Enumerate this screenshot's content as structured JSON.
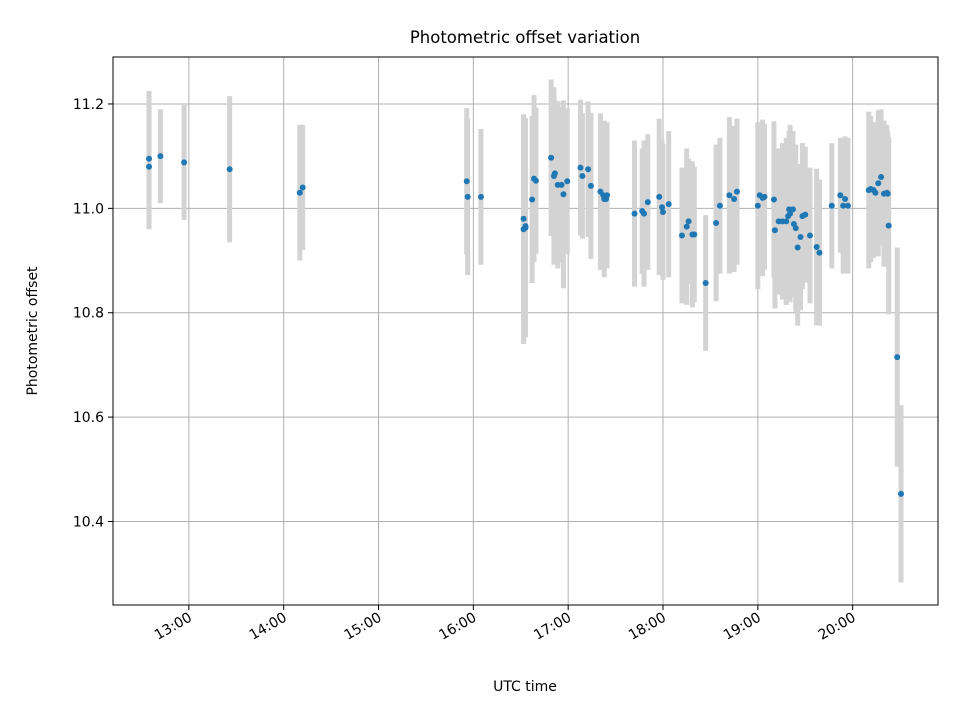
{
  "chart_data": {
    "type": "scatter",
    "title": "Photometric offset variation",
    "xlabel": "UTC time",
    "ylabel": "Photometric offset",
    "x_unit": "decimal hours UTC",
    "xlim": [
      12.2,
      20.9
    ],
    "ylim": [
      10.24,
      11.29
    ],
    "x_ticks": [
      13,
      14,
      15,
      16,
      17,
      18,
      19,
      20
    ],
    "x_tick_labels": [
      "13:00",
      "14:00",
      "15:00",
      "16:00",
      "17:00",
      "18:00",
      "19:00",
      "20:00"
    ],
    "y_ticks": [
      10.4,
      10.6,
      10.8,
      11.0,
      11.2
    ],
    "y_tick_labels": [
      "10.4",
      "10.6",
      "10.8",
      "11.0",
      "11.2"
    ],
    "grid": true,
    "marker_color": "#1f77b4",
    "errorbar_color": "#d3d3d3",
    "series": [
      {
        "name": "Photometric offset",
        "x": [
          12.58,
          12.58,
          12.7,
          12.95,
          13.43,
          14.17,
          14.2,
          15.93,
          15.94,
          16.08,
          16.53,
          16.53,
          16.55,
          16.55,
          16.62,
          16.64,
          16.66,
          16.82,
          16.85,
          16.86,
          16.89,
          16.93,
          16.95,
          16.99,
          17.13,
          17.15,
          17.21,
          17.24,
          17.34,
          17.37,
          17.38,
          17.4,
          17.41,
          17.7,
          17.78,
          17.8,
          17.84,
          17.96,
          17.99,
          18.0,
          18.06,
          18.2,
          18.25,
          18.27,
          18.31,
          18.33,
          18.45,
          18.56,
          18.6,
          18.7,
          18.75,
          18.78,
          19.0,
          19.02,
          19.05,
          19.07,
          19.17,
          19.18,
          19.22,
          19.26,
          19.3,
          19.32,
          19.33,
          19.34,
          19.37,
          19.38,
          19.4,
          19.42,
          19.45,
          19.47,
          19.5,
          19.55,
          19.62,
          19.65,
          19.78,
          19.87,
          19.9,
          19.92,
          19.95,
          20.17,
          20.19,
          20.22,
          20.24,
          20.27,
          20.3,
          20.33,
          20.36,
          20.37,
          20.38,
          20.47,
          20.51
        ],
        "y": [
          11.08,
          11.095,
          11.1,
          11.088,
          11.075,
          11.03,
          11.04,
          11.052,
          11.022,
          11.022,
          10.98,
          10.96,
          10.963,
          10.966,
          11.017,
          11.057,
          11.053,
          11.097,
          11.062,
          11.067,
          11.045,
          11.045,
          11.027,
          11.052,
          11.078,
          11.062,
          11.075,
          11.043,
          11.032,
          11.025,
          11.018,
          11.018,
          11.025,
          10.99,
          10.995,
          10.99,
          11.012,
          11.022,
          11.002,
          10.993,
          11.008,
          10.948,
          10.965,
          10.975,
          10.95,
          10.95,
          10.857,
          10.972,
          11.005,
          11.025,
          11.018,
          11.032,
          11.005,
          11.025,
          11.02,
          11.022,
          11.017,
          10.958,
          10.975,
          10.975,
          10.975,
          10.985,
          10.998,
          10.99,
          10.998,
          10.97,
          10.962,
          10.925,
          10.945,
          10.985,
          10.988,
          10.948,
          10.926,
          10.915,
          11.005,
          11.025,
          11.005,
          11.018,
          11.005,
          11.035,
          11.037,
          11.035,
          11.03,
          11.048,
          11.06,
          11.028,
          11.03,
          11.028,
          10.967,
          10.715,
          10.453
        ],
        "yerr": [
          0.12,
          0.13,
          0.09,
          0.11,
          0.14,
          0.13,
          0.12,
          0.14,
          0.15,
          0.13,
          0.2,
          0.22,
          0.21,
          0.18,
          0.16,
          0.16,
          0.14,
          0.15,
          0.17,
          0.14,
          0.16,
          0.15,
          0.18,
          0.14,
          0.13,
          0.12,
          0.13,
          0.14,
          0.15,
          0.14,
          0.15,
          0.13,
          0.14,
          0.14,
          0.12,
          0.14,
          0.13,
          0.15,
          0.13,
          0.13,
          0.14,
          0.13,
          0.15,
          0.12,
          0.14,
          0.13,
          0.13,
          0.15,
          0.13,
          0.15,
          0.14,
          0.14,
          0.16,
          0.13,
          0.15,
          0.14,
          0.15,
          0.15,
          0.14,
          0.15,
          0.16,
          0.14,
          0.15,
          0.17,
          0.15,
          0.14,
          0.16,
          0.15,
          0.14,
          0.14,
          0.13,
          0.13,
          0.15,
          0.14,
          0.12,
          0.11,
          0.13,
          0.12,
          0.13,
          0.15,
          0.14,
          0.13,
          0.12,
          0.14,
          0.13,
          0.14,
          0.13,
          0.12,
          0.17,
          0.21,
          0.17
        ]
      }
    ]
  }
}
